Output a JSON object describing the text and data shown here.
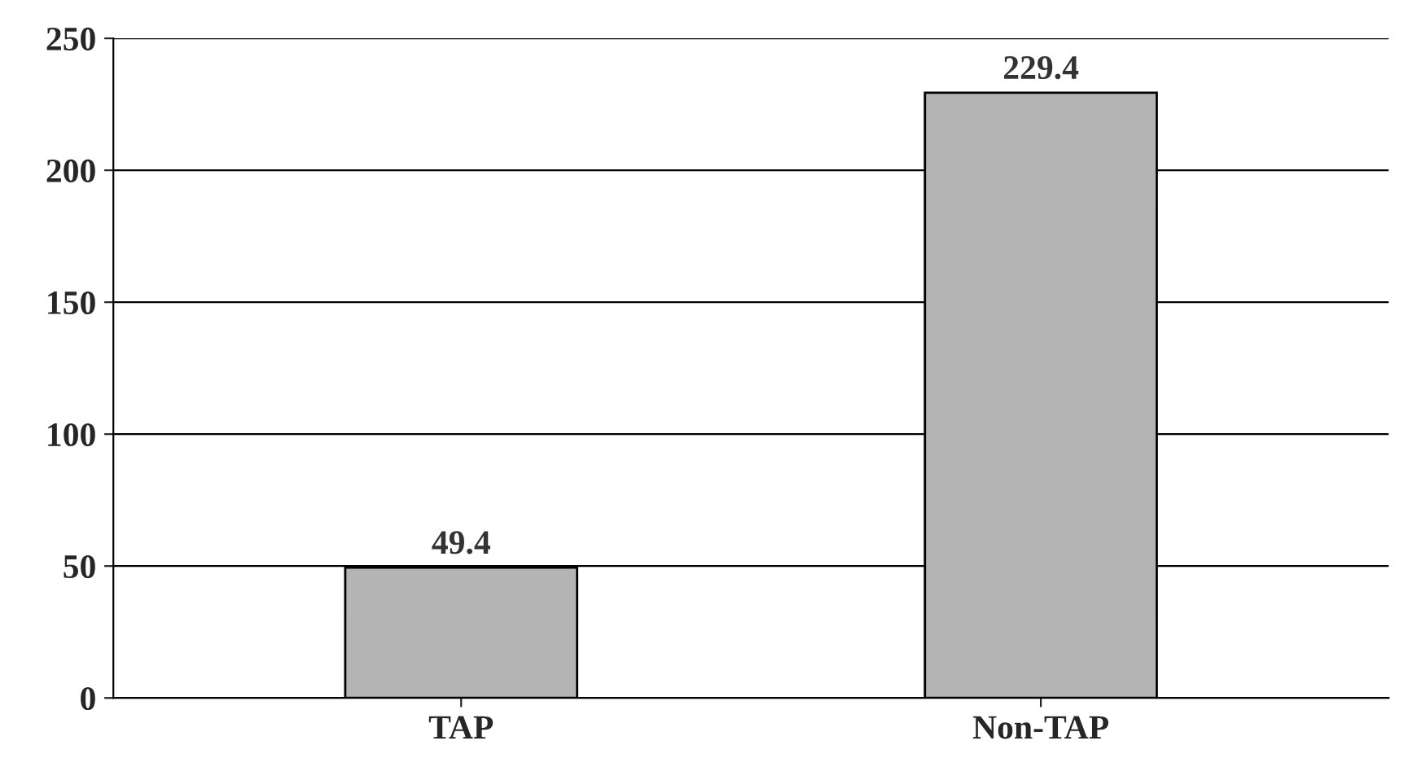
{
  "chart_data": {
    "type": "bar",
    "categories": [
      "TAP",
      "Non-TAP"
    ],
    "values": [
      49.4,
      229.4
    ],
    "color": "#b4b4b4",
    "ylim": [
      0,
      250
    ],
    "yticks": [
      0,
      50,
      100,
      150,
      200,
      250
    ],
    "grid": "y",
    "data_labels": true
  }
}
